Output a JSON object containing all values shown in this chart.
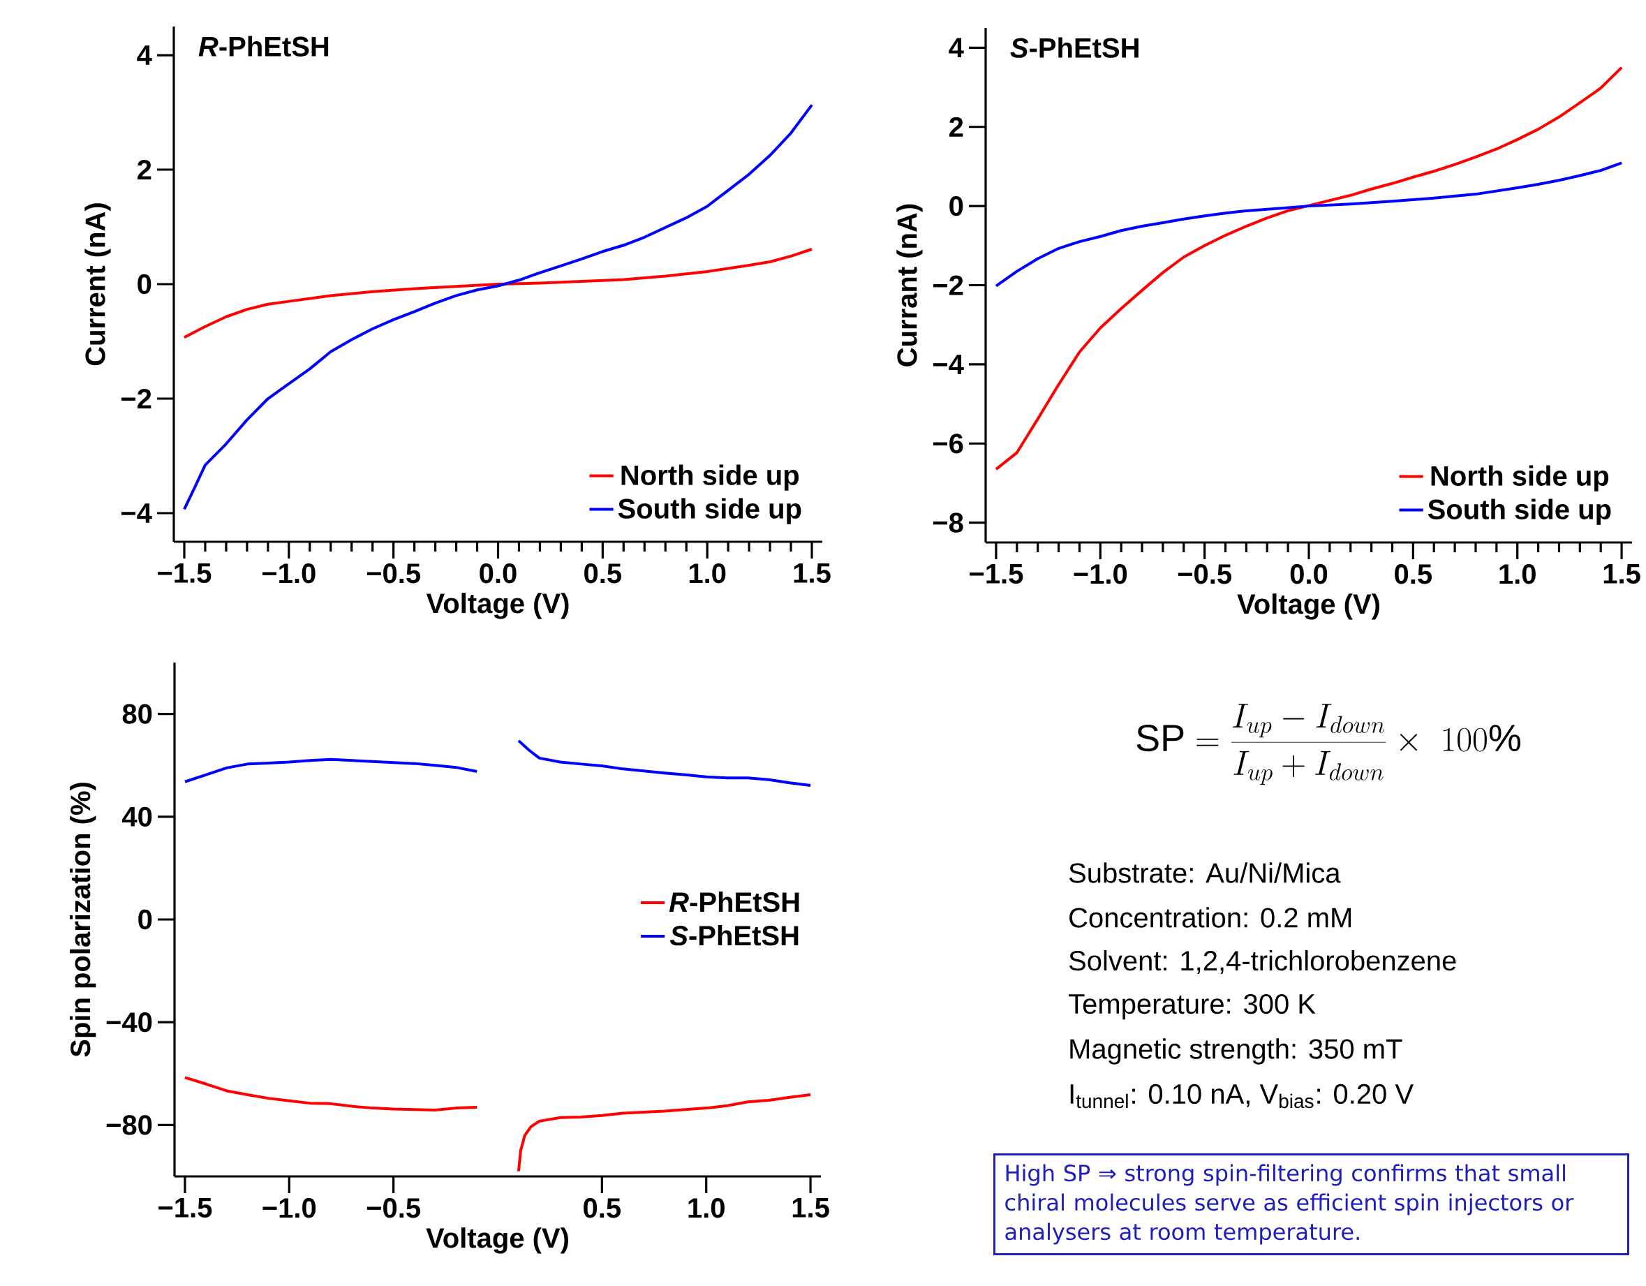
{
  "chart_data": [
    {
      "type": "line",
      "title": "*R*-PhEtSH",
      "xlabel": "Voltage (V)",
      "ylabel": "Current (nA)",
      "xlim": [
        -1.55,
        1.55
      ],
      "ylim": [
        -4.5,
        4.5
      ],
      "xticks": [
        {
          "value": -1.5,
          "label": "−1.5"
        },
        {
          "value": -1.0,
          "label": "−1.0"
        },
        {
          "value": -0.5,
          "label": "−0.5"
        },
        {
          "value": 0,
          "label": "0.0"
        },
        {
          "value": 0.5,
          "label": "0.5"
        },
        {
          "value": 1.0,
          "label": "1.0"
        },
        {
          "value": 1.5,
          "label": "1.5"
        }
      ],
      "yticks": [
        {
          "value": -4,
          "label": "−4"
        },
        {
          "value": -2,
          "label": "−2"
        },
        {
          "value": 0,
          "label": "0"
        },
        {
          "value": 2,
          "label": "2"
        },
        {
          "value": 4,
          "label": "4"
        }
      ],
      "legend": "bottom right",
      "series": [
        {
          "name": "North side up",
          "color": "#ff0000",
          "x": [
            -1.5,
            -1.4,
            -1.3,
            -1.2,
            -1.1,
            -1.0,
            -0.8,
            -0.6,
            -0.4,
            -0.2,
            0,
            0.2,
            0.4,
            0.6,
            0.8,
            1.0,
            1.2,
            1.3,
            1.4,
            1.5
          ],
          "values": [
            -0.93,
            -0.74,
            -0.57,
            -0.44,
            -0.35,
            -0.3,
            -0.2,
            -0.13,
            -0.08,
            -0.04,
            0,
            0.02,
            0.05,
            0.08,
            0.14,
            0.22,
            0.33,
            0.39,
            0.49,
            0.61
          ]
        },
        {
          "name": "South side up",
          "color": "#0000ff",
          "x": [
            -1.5,
            -1.45,
            -1.4,
            -1.3,
            -1.2,
            -1.1,
            -1.0,
            -0.9,
            -0.8,
            -0.7,
            -0.6,
            -0.5,
            -0.4,
            -0.3,
            -0.2,
            -0.1,
            0,
            0.1,
            0.2,
            0.3,
            0.4,
            0.5,
            0.6,
            0.7,
            0.8,
            0.9,
            1.0,
            1.1,
            1.2,
            1.3,
            1.4,
            1.5
          ],
          "values": [
            -3.93,
            -3.55,
            -3.16,
            -2.79,
            -2.37,
            -2.0,
            -1.74,
            -1.48,
            -1.18,
            -0.97,
            -0.78,
            -0.62,
            -0.48,
            -0.33,
            -0.2,
            -0.1,
            -0.03,
            0.07,
            0.2,
            0.32,
            0.44,
            0.57,
            0.68,
            0.82,
            0.99,
            1.16,
            1.36,
            1.64,
            1.92,
            2.25,
            2.64,
            3.13
          ]
        }
      ]
    },
    {
      "type": "line",
      "title": "*S*-PhEtSH",
      "xlabel": "Voltage (V)",
      "ylabel": "Currant (nA)",
      "xlim": [
        -1.55,
        1.55
      ],
      "ylim": [
        -8.5,
        4.5
      ],
      "xticks": [
        {
          "value": -1.5,
          "label": "−1.5"
        },
        {
          "value": -1.0,
          "label": "−1.0"
        },
        {
          "value": -0.5,
          "label": "−0.5"
        },
        {
          "value": 0,
          "label": "0.0"
        },
        {
          "value": 0.5,
          "label": "0.5"
        },
        {
          "value": 1.0,
          "label": "1.0"
        },
        {
          "value": 1.5,
          "label": "1.5"
        }
      ],
      "yticks": [
        {
          "value": -8,
          "label": "−8"
        },
        {
          "value": -6,
          "label": "−6"
        },
        {
          "value": -4,
          "label": "−4"
        },
        {
          "value": -2,
          "label": "−2"
        },
        {
          "value": 0,
          "label": "0"
        },
        {
          "value": 2,
          "label": "2"
        },
        {
          "value": 4,
          "label": "4"
        }
      ],
      "legend": "bottom right",
      "series": [
        {
          "name": "North side up",
          "color": "#ff0000",
          "x": [
            -1.5,
            -1.4,
            -1.3,
            -1.2,
            -1.1,
            -1.0,
            -0.9,
            -0.8,
            -0.7,
            -0.6,
            -0.5,
            -0.4,
            -0.3,
            -0.2,
            -0.1,
            0,
            0.1,
            0.2,
            0.3,
            0.4,
            0.5,
            0.6,
            0.7,
            0.8,
            0.9,
            1.0,
            1.1,
            1.2,
            1.3,
            1.4,
            1.5
          ],
          "values": [
            -6.65,
            -6.23,
            -5.38,
            -4.51,
            -3.69,
            -3.08,
            -2.59,
            -2.13,
            -1.68,
            -1.29,
            -1.0,
            -0.74,
            -0.51,
            -0.3,
            -0.12,
            0.01,
            0.14,
            0.27,
            0.43,
            0.57,
            0.73,
            0.88,
            1.05,
            1.24,
            1.44,
            1.68,
            1.94,
            2.25,
            2.61,
            2.98,
            3.5
          ]
        },
        {
          "name": "South side up",
          "color": "#0000ff",
          "x": [
            -1.5,
            -1.4,
            -1.3,
            -1.2,
            -1.1,
            -1.0,
            -0.9,
            -0.8,
            -0.7,
            -0.6,
            -0.5,
            -0.4,
            -0.3,
            -0.2,
            -0.1,
            0,
            0.2,
            0.4,
            0.6,
            0.8,
            1.0,
            1.1,
            1.2,
            1.3,
            1.4,
            1.5
          ],
          "values": [
            -2.02,
            -1.65,
            -1.33,
            -1.07,
            -0.9,
            -0.77,
            -0.62,
            -0.51,
            -0.42,
            -0.33,
            -0.25,
            -0.18,
            -0.12,
            -0.08,
            -0.04,
            0,
            0.05,
            0.12,
            0.2,
            0.3,
            0.46,
            0.55,
            0.65,
            0.77,
            0.9,
            1.09
          ]
        }
      ]
    },
    {
      "type": "line",
      "xlabel": "Voltage (V)",
      "ylabel": "Spin polarization (%)",
      "xlim": [
        -1.55,
        1.55
      ],
      "ylim": [
        -100,
        100
      ],
      "xticks": [
        {
          "value": -1.5,
          "label": "−1.5"
        },
        {
          "value": -1.0,
          "label": "−1.0"
        },
        {
          "value": -0.5,
          "label": "−0.5"
        },
        {
          "value": 0.5,
          "label": "0.5"
        },
        {
          "value": 1.0,
          "label": "1.0"
        },
        {
          "value": 1.5,
          "label": "1.5"
        }
      ],
      "yticks": [
        {
          "value": -80,
          "label": "−80"
        },
        {
          "value": -40,
          "label": "−40"
        },
        {
          "value": 0,
          "label": "0"
        },
        {
          "value": 40,
          "label": "40"
        },
        {
          "value": 80,
          "label": "80"
        }
      ],
      "legend": "right",
      "series": [
        {
          "name": "*R*-PhEtSH",
          "color": "#ff0000",
          "x": [
            -1.5,
            -1.4,
            -1.3,
            -1.2,
            -1.1,
            -1.0,
            -0.9,
            -0.8,
            -0.7,
            -0.6,
            -0.5,
            -0.4,
            -0.3,
            -0.2,
            -0.1,
            0,
            0.1,
            0.11,
            0.13,
            0.16,
            0.2,
            0.3,
            0.4,
            0.5,
            0.6,
            0.7,
            0.8,
            0.9,
            1.0,
            1.1,
            1.2,
            1.3,
            1.4,
            1.5
          ],
          "values": [
            -61.5,
            -64,
            -66.7,
            -68.2,
            -69.6,
            -70.6,
            -71.5,
            -71.7,
            -72.7,
            -73.4,
            -73.8,
            -74,
            -74.2,
            -73.4,
            -73.1,
            null,
            -98,
            -90,
            -84,
            -80.6,
            -78.5,
            -77.1,
            -76.9,
            -76.3,
            -75.4,
            -75,
            -74.6,
            -74,
            -73.4,
            -72.5,
            -71,
            -70.4,
            -69.2,
            -68.2
          ]
        },
        {
          "name": "*S*-PhEtSH",
          "color": "#0000ff",
          "x": [
            -1.5,
            -1.4,
            -1.3,
            -1.2,
            -1.1,
            -1.0,
            -0.9,
            -0.8,
            -0.7,
            -0.6,
            -0.5,
            -0.4,
            -0.3,
            -0.2,
            -0.1,
            0,
            0.1,
            0.15,
            0.2,
            0.3,
            0.4,
            0.5,
            0.6,
            0.7,
            0.8,
            0.9,
            1.0,
            1.1,
            1.2,
            1.3,
            1.4,
            1.5
          ],
          "values": [
            53.6,
            56.3,
            59,
            60.5,
            60.9,
            61.3,
            61.9,
            62.3,
            61.9,
            61.5,
            61.1,
            60.7,
            60,
            59.2,
            57.6,
            null,
            69.6,
            65.9,
            62.8,
            61.3,
            60.5,
            59.8,
            58.6,
            57.8,
            57,
            56.3,
            55.5,
            55.1,
            55.1,
            54.4,
            53.2,
            52.2
          ]
        }
      ]
    },
    {
      "type": "other",
      "title": "\\mathrm{SP} = \\frac{I_{up} - I_{down}}{I_{up} + I_{down}} \\times\\ 100\\%",
      "annotations": [
        "Substrate: Au/Ni/Mica",
        "Concentration: 0.2 mM",
        "Solvent: 1,2,4-trichlorobenzene",
        "Temperature: 300 K",
        "Magnetic strength: 350 mT",
        "I$_{tunnel}$: 0.10 nA, V$_{bias}$: 0.20 V",
        "High SP ⇒ strong spin-filtering confirms that small chiral molecules serve as efficient spin injectors or analysers at room temperature."
      ]
    }
  ]
}
